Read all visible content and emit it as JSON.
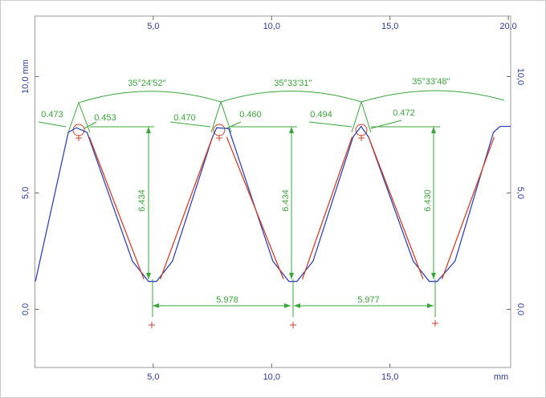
{
  "chart_data": {
    "type": "line",
    "xlim": [
      0,
      20.1
    ],
    "ylim": [
      -2.5,
      12.6
    ],
    "xticks": [
      {
        "value": 5,
        "label": "5,0"
      },
      {
        "value": 10,
        "label": "10,0"
      },
      {
        "value": 15,
        "label": "15,0"
      },
      {
        "value": 20,
        "label": "20,0"
      }
    ],
    "bottom_xticks": [
      {
        "value": 5,
        "label": "5,0"
      },
      {
        "value": 10,
        "label": "10,0"
      },
      {
        "value": 15,
        "label": "15,0"
      }
    ],
    "x_unit": "mm",
    "yticks": [
      {
        "value": 0,
        "label": "0,0"
      },
      {
        "value": 5,
        "label": "5,0"
      },
      {
        "value": 10,
        "label": "10,0 mm"
      }
    ],
    "y2ticks": [
      {
        "value": 0,
        "label": "0,0"
      },
      {
        "value": 5,
        "label": "5,0"
      },
      {
        "value": 10,
        "label": "10,0"
      }
    ],
    "series": [
      {
        "color": "#3346b8",
        "x": [
          0.02,
          1.41,
          1.75,
          2.2,
          4.12,
          4.8,
          5.14,
          5.81,
          7.5,
          7.68,
          8.19,
          10.05,
          10.73,
          11.07,
          11.75,
          13.44,
          13.78,
          14.1,
          15.98,
          16.66,
          17.0,
          17.75,
          19.37,
          19.65,
          20.1
        ],
        "values": [
          1.2,
          7.6,
          7.8,
          7.6,
          2.07,
          1.2,
          1.2,
          2.07,
          7.4,
          7.8,
          7.76,
          2.07,
          1.2,
          1.2,
          2.07,
          7.4,
          7.86,
          7.4,
          2.07,
          1.2,
          1.2,
          2.07,
          7.6,
          7.86,
          7.86
        ]
      },
      {
        "color": "#d0402a",
        "x": [
          2.3,
          4.6,
          null,
          5.3,
          7.5,
          null,
          8.1,
          10.5,
          null,
          11.3,
          13.4,
          null,
          14.1,
          16.4,
          null,
          17.2,
          19.4
        ],
        "values": [
          7.4,
          1.3,
          null,
          1.3,
          7.4,
          null,
          7.4,
          1.3,
          null,
          1.3,
          7.4,
          null,
          7.4,
          1.3,
          null,
          1.3,
          7.4
        ]
      }
    ],
    "annotations": [
      "35°24'52''",
      "35°33'31''",
      "35°33'48''",
      "0.473",
      "0.453",
      "0.470",
      "0.460",
      "0.494",
      "0.472",
      "6.434",
      "6.434",
      "6.430",
      "5.978",
      "5.977"
    ]
  }
}
